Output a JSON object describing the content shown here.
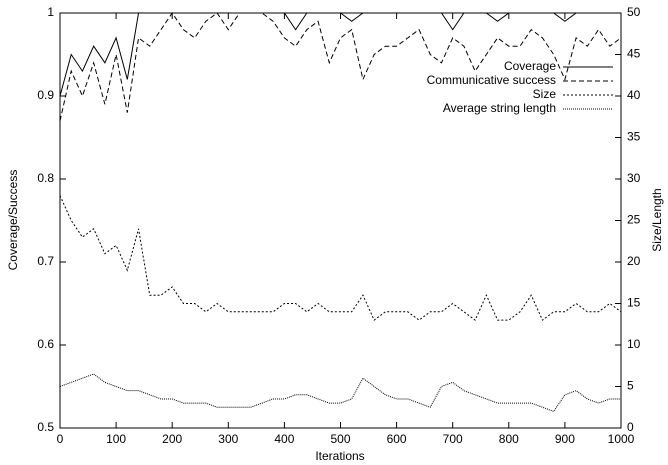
{
  "chart_data": {
    "type": "line",
    "xlabel": "Iterations",
    "ylabel": "Coverage/Success",
    "y2label": "Size/Length",
    "x": [
      0,
      20,
      40,
      60,
      80,
      100,
      120,
      140,
      160,
      180,
      200,
      220,
      240,
      260,
      280,
      300,
      320,
      340,
      360,
      380,
      400,
      420,
      440,
      460,
      480,
      500,
      520,
      540,
      560,
      580,
      600,
      620,
      640,
      660,
      680,
      700,
      720,
      740,
      760,
      780,
      800,
      820,
      840,
      860,
      880,
      900,
      920,
      940,
      960,
      980,
      1000
    ],
    "xlim": [
      0,
      1000
    ],
    "xticks": [
      0,
      100,
      200,
      300,
      400,
      500,
      600,
      700,
      800,
      900,
      1000
    ],
    "ylim": [
      0.5,
      1
    ],
    "yticks": [
      0.5,
      0.6,
      0.7,
      0.8,
      0.9,
      1
    ],
    "y2lim": [
      0,
      50
    ],
    "y2ticks": [
      0,
      5,
      10,
      15,
      20,
      25,
      30,
      35,
      40,
      45,
      50
    ],
    "legend": "upper right",
    "series": [
      {
        "name": "Coverage",
        "color": "#000000",
        "dash": "none",
        "values": [
          0.9,
          0.95,
          0.93,
          0.96,
          0.94,
          0.97,
          0.92,
          1,
          1,
          1,
          1,
          1,
          1,
          1,
          1,
          1,
          1,
          1,
          1,
          1,
          1,
          0.98,
          1,
          1,
          1,
          1,
          0.99,
          1,
          1,
          1,
          1,
          1,
          1,
          1,
          1,
          0.98,
          1,
          1,
          1,
          0.99,
          1,
          1,
          1,
          1,
          1,
          0.99,
          1,
          1,
          1,
          1,
          1
        ]
      },
      {
        "name": "Communicative success",
        "color": "#000000",
        "dash": "5,3",
        "values": [
          0.87,
          0.93,
          0.9,
          0.94,
          0.89,
          0.95,
          0.88,
          0.97,
          0.96,
          0.98,
          1,
          0.98,
          0.97,
          0.99,
          1,
          0.98,
          1,
          1,
          1,
          0.99,
          0.97,
          0.96,
          0.98,
          0.99,
          0.94,
          0.97,
          0.98,
          0.92,
          0.95,
          0.96,
          0.96,
          0.97,
          0.98,
          0.95,
          0.94,
          0.97,
          0.96,
          0.93,
          0.95,
          0.97,
          0.96,
          0.96,
          0.98,
          0.97,
          0.95,
          0.92,
          0.97,
          0.96,
          0.98,
          0.96,
          0.97
        ]
      },
      {
        "name": "Size",
        "color": "#000000",
        "dash": "2,2",
        "axis": "y2",
        "values": [
          28,
          25,
          23,
          24,
          21,
          22,
          19,
          24,
          16,
          16,
          17,
          15,
          15,
          14,
          15,
          14,
          14,
          14,
          14,
          14,
          15,
          15,
          14,
          15,
          14,
          14,
          14,
          16,
          13,
          14,
          14,
          14,
          13,
          14,
          14,
          15,
          14,
          13,
          16,
          13,
          13,
          14,
          16,
          13,
          14,
          14,
          15,
          14,
          14,
          15,
          14
        ]
      },
      {
        "name": "Average string length",
        "color": "#000000",
        "dash": "1,1",
        "axis": "y2",
        "values": [
          5,
          5.5,
          6,
          6.5,
          5.5,
          5,
          4.5,
          4.5,
          4,
          3.5,
          3.5,
          3,
          3,
          3,
          2.5,
          2.5,
          2.5,
          2.5,
          3,
          3.5,
          3.5,
          4,
          4,
          3.5,
          3,
          3,
          3.5,
          6,
          5,
          4,
          3.5,
          3.5,
          3,
          2.5,
          5,
          5.5,
          4.5,
          4,
          3.5,
          3,
          3,
          3,
          3,
          2.5,
          2,
          4,
          4.5,
          3.5,
          3,
          3.5,
          3.5
        ]
      }
    ]
  }
}
